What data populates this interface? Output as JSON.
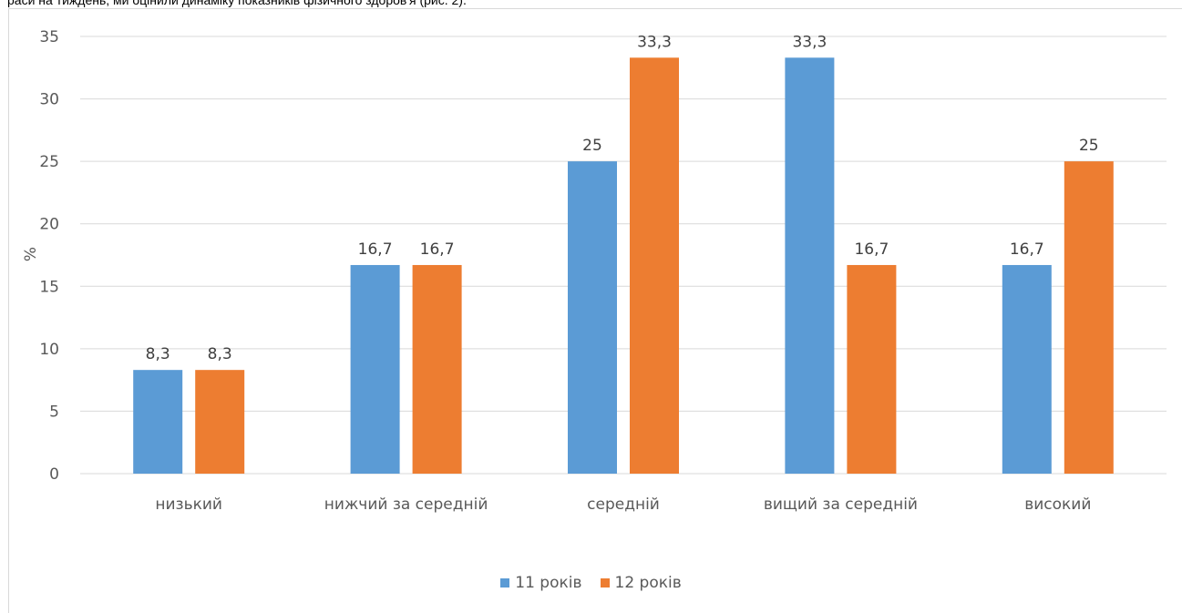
{
  "caption": "раси на тиждень, ми оцінили динаміку показників фізичного здоров'я (рис. 2).",
  "colors": {
    "series_1": "#5B9BD5",
    "series_2": "#ED7D31",
    "grid": "#d9d9d9",
    "text": "#595959"
  },
  "chart_data": {
    "type": "bar",
    "title": "",
    "xlabel": "",
    "ylabel": "%",
    "ylim": [
      0,
      35
    ],
    "yticks": [
      0,
      5,
      10,
      15,
      20,
      25,
      30,
      35
    ],
    "grid": true,
    "legend_position": "bottom",
    "categories": [
      "низький",
      "нижчий за середній",
      "середній",
      "вищий за середній",
      "високий"
    ],
    "series": [
      {
        "name": "11 років",
        "values": [
          8.3,
          16.7,
          25,
          33.3,
          16.7
        ],
        "labels": [
          "8,3",
          "16,7",
          "25",
          "33,3",
          "16,7"
        ]
      },
      {
        "name": "12 років",
        "values": [
          8.3,
          16.7,
          33.3,
          16.7,
          25
        ],
        "labels": [
          "8,3",
          "16,7",
          "33,3",
          "16,7",
          "25"
        ]
      }
    ]
  }
}
